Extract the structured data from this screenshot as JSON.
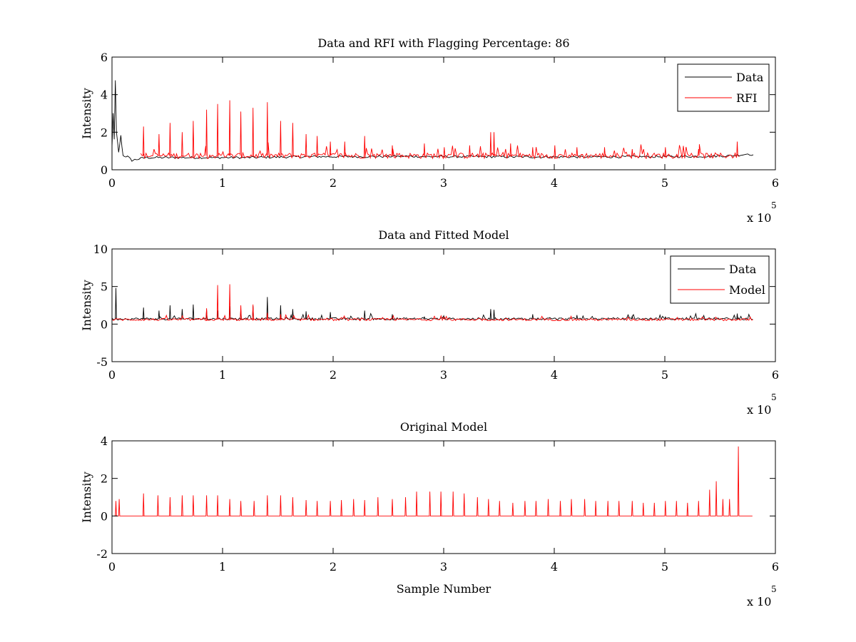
{
  "figure": {
    "background": "#ffffff",
    "colors": {
      "data": "#000000",
      "rfi": "#ff0000",
      "model": "#ff0000",
      "axis": "#000000"
    }
  },
  "chart_data": [
    {
      "type": "line",
      "title": "Data and RFI with Flagging Percentage: 86",
      "xlabel": "",
      "ylabel": "Intensity",
      "xlim": [
        0,
        600000
      ],
      "ylim": [
        0,
        6
      ],
      "xticks": [
        0,
        1,
        2,
        3,
        4,
        5,
        6
      ],
      "yticks": [
        0,
        2,
        4,
        6
      ],
      "x_multiplier": {
        "base": "x 10",
        "exponent": "5"
      },
      "grid": false,
      "legend": {
        "position": "top-right",
        "entries": [
          "Data",
          "RFI"
        ]
      },
      "series": [
        {
          "name": "Data",
          "color": "#000000",
          "description_points": {
            "x": [
              0,
              1000,
              2000,
              3000,
              4000,
              6000,
              8000,
              10000,
              14000,
              18000,
              22000,
              26000,
              30000,
              60000,
              120000,
              180000,
              230000,
              260000,
              290000,
              330000,
              400000,
              500000,
              540000,
              560000,
              570000,
              575000,
              580000
            ],
            "y": [
              1.2,
              3.0,
              1.6,
              4.8,
              2.0,
              0.9,
              1.8,
              0.75,
              0.7,
              0.5,
              0.55,
              0.6,
              0.65,
              0.65,
              0.65,
              0.7,
              0.7,
              0.72,
              0.7,
              0.7,
              0.68,
              0.7,
              0.72,
              0.75,
              0.8,
              0.85,
              0.8
            ]
          }
        },
        {
          "name": "RFI",
          "color": "#ff0000",
          "spikes": {
            "x": [
              28000,
              42000,
              52000,
              63000,
              73000,
              85000,
              95000,
              106000,
              116000,
              127000,
              140000,
              152000,
              163000,
              175000,
              185000,
              197000,
              210000,
              228000,
              253000,
              282000,
              300000,
              323000,
              342000,
              345000,
              360000,
              380000,
              400000,
              420000,
              445000,
              470000,
              500000,
              530000,
              565000
            ],
            "y": [
              2.3,
              1.9,
              2.5,
              2.0,
              2.6,
              3.2,
              3.5,
              3.7,
              3.1,
              3.3,
              3.6,
              2.6,
              2.5,
              1.9,
              1.8,
              1.5,
              1.5,
              1.8,
              1.3,
              1.4,
              1.2,
              1.3,
              2.0,
              2.0,
              1.4,
              1.2,
              1.3,
              1.2,
              1.2,
              1.1,
              1.2,
              1.1,
              1.5
            ]
          },
          "baseline": 0.75,
          "x_range": [
            26000,
            568000
          ]
        }
      ]
    },
    {
      "type": "line",
      "title": "Data and Fitted Model",
      "xlabel": "",
      "ylabel": "Intensity",
      "xlim": [
        0,
        600000
      ],
      "ylim": [
        -5,
        10
      ],
      "xticks": [
        0,
        1,
        2,
        3,
        4,
        5,
        6
      ],
      "yticks": [
        -5,
        0,
        5,
        10
      ],
      "x_multiplier": {
        "base": "x 10",
        "exponent": "5"
      },
      "grid": false,
      "legend": {
        "position": "top-right",
        "entries": [
          "Data",
          "Model"
        ]
      },
      "series": [
        {
          "name": "Data",
          "color": "#000000",
          "spikes": {
            "x": [
              3000,
              28000,
              42000,
              52000,
              63000,
              73000,
              85000,
              95000,
              106000,
              116000,
              127000,
              140000,
              152000,
              163000,
              175000,
              197000,
              228000,
              253000,
              282000,
              300000,
              342000,
              345000,
              380000,
              420000,
              470000,
              500000,
              565000
            ],
            "y": [
              4.8,
              2.2,
              1.8,
              2.5,
              2.0,
              2.6,
              1.9,
              1.8,
              2.4,
              1.9,
              2.4,
              3.6,
              2.5,
              2.0,
              1.7,
              1.6,
              1.8,
              1.3,
              1.0,
              1.0,
              2.0,
              1.9,
              1.3,
              1.2,
              1.1,
              1.0,
              1.4
            ]
          },
          "baseline": 0.7,
          "x_range": [
            0,
            580000
          ]
        },
        {
          "name": "Model",
          "color": "#ff0000",
          "spikes": {
            "x": [
              85000,
              95000,
              106000,
              116000,
              127000,
              140000,
              152000
            ],
            "y": [
              2.1,
              5.2,
              5.3,
              2.5,
              2.6,
              1.5,
              1.3
            ]
          },
          "baseline": 0.6,
          "x_range": [
            0,
            580000
          ]
        }
      ]
    },
    {
      "type": "line",
      "title": "Original Model",
      "xlabel": "Sample Number",
      "ylabel": "Intensity",
      "xlim": [
        0,
        600000
      ],
      "ylim": [
        -2,
        4
      ],
      "xticks": [
        0,
        1,
        2,
        3,
        4,
        5,
        6
      ],
      "yticks": [
        -2,
        0,
        2,
        4
      ],
      "x_multiplier": {
        "base": "x 10",
        "exponent": "5"
      },
      "grid": false,
      "legend": null,
      "series": [
        {
          "color": "#ff0000",
          "spikes": {
            "x": [
              3000,
              6000,
              28000,
              41000,
              52000,
              63000,
              73000,
              85000,
              95000,
              106000,
              116000,
              128000,
              140000,
              152000,
              163000,
              175000,
              185000,
              197000,
              207000,
              218000,
              228000,
              240000,
              253000,
              265000,
              275000,
              287000,
              297000,
              308000,
              318000,
              330000,
              340000,
              350000,
              362000,
              373000,
              383000,
              394000,
              405000,
              415000,
              427000,
              437000,
              448000,
              458000,
              470000,
              480000,
              490000,
              500000,
              510000,
              520000,
              530000,
              540000,
              546000,
              552000,
              558000,
              566000
            ],
            "y": [
              0.8,
              0.9,
              1.2,
              1.1,
              1.0,
              1.1,
              1.1,
              1.1,
              1.1,
              0.9,
              0.8,
              0.8,
              1.1,
              1.1,
              1.0,
              0.85,
              0.8,
              0.8,
              0.85,
              0.9,
              0.85,
              1.0,
              0.9,
              1.0,
              1.3,
              1.3,
              1.3,
              1.3,
              1.2,
              1.0,
              0.9,
              0.8,
              0.7,
              0.8,
              0.8,
              0.9,
              0.8,
              0.9,
              0.9,
              0.8,
              0.8,
              0.8,
              0.8,
              0.7,
              0.7,
              0.8,
              0.8,
              0.7,
              0.8,
              1.4,
              1.85,
              0.9,
              0.9,
              3.7
            ]
          },
          "baseline": 0.0,
          "x_range": [
            2000,
            580000
          ]
        }
      ]
    }
  ]
}
